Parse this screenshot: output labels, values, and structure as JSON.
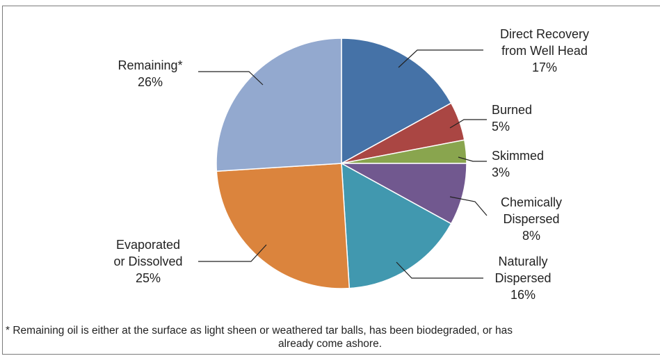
{
  "chart_data": {
    "type": "pie",
    "title": "",
    "slices": [
      {
        "label": "Direct Recovery from Well Head",
        "value": 17,
        "value_text": "17%",
        "color": "#4572A7",
        "label_lines": [
          "Direct Recovery",
          "from Well Head",
          "17%"
        ]
      },
      {
        "label": "Burned",
        "value": 5,
        "value_text": "5%",
        "color": "#AA4643",
        "label_lines": [
          "Burned",
          "5%"
        ]
      },
      {
        "label": "Skimmed",
        "value": 3,
        "value_text": "3%",
        "color": "#89A54E",
        "label_lines": [
          "Skimmed",
          "3%"
        ]
      },
      {
        "label": "Chemically Dispersed",
        "value": 8,
        "value_text": "8%",
        "color": "#71588F",
        "label_lines": [
          "Chemically",
          "Dispersed",
          "8%"
        ]
      },
      {
        "label": "Naturally Dispersed",
        "value": 16,
        "value_text": "16%",
        "color": "#4198AF",
        "label_lines": [
          "Naturally",
          "Dispersed",
          "16%"
        ]
      },
      {
        "label": "Evaporated or Dissolved",
        "value": 25,
        "value_text": "25%",
        "color": "#DB843D",
        "label_lines": [
          "Evaporated",
          "or Dissolved",
          "25%"
        ]
      },
      {
        "label": "Remaining*",
        "value": 26,
        "value_text": "26%",
        "color": "#93A9CF",
        "label_lines": [
          "Remaining*",
          "26%"
        ]
      }
    ],
    "start_angle": "12 o'clock",
    "direction": "clockwise",
    "legend": "none"
  },
  "footnote": {
    "line1": "* Remaining oil is either at the surface as light sheen or weathered tar balls, has been biodegraded, or has",
    "line2": "already come ashore."
  }
}
